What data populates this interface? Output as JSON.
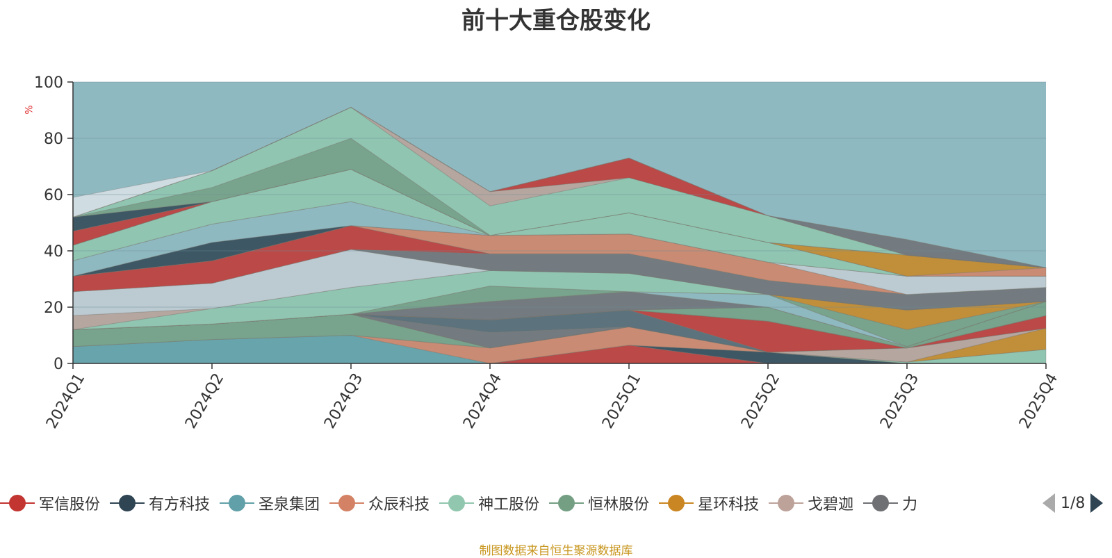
{
  "title": "前十大重仓股变化",
  "yunit": "%",
  "source": "制图数据来自恒生聚源数据库",
  "pager": {
    "text": "1/8"
  },
  "legend": [
    {
      "name": "军信股份",
      "color": "#c23531"
    },
    {
      "name": "有方科技",
      "color": "#2f4554"
    },
    {
      "name": "圣泉集团",
      "color": "#61a0a8"
    },
    {
      "name": "众辰科技",
      "color": "#d48265"
    },
    {
      "name": "神工股份",
      "color": "#91c7ae"
    },
    {
      "name": "恒林股份",
      "color": "#749f83"
    },
    {
      "name": "星环科技",
      "color": "#ca8622"
    },
    {
      "name": "戈碧迦",
      "color": "#bda29a"
    },
    {
      "name": "力",
      "color": "#6e7074"
    }
  ],
  "chart_data": {
    "type": "area",
    "stacked": true,
    "title": "前十大重仓股变化",
    "ylabel": "%",
    "ylim": [
      0,
      100
    ],
    "yticks": [
      0,
      20,
      40,
      60,
      80,
      100
    ],
    "categories": [
      "2024Q1",
      "2024Q2",
      "2024Q3",
      "2024Q4",
      "2025Q1",
      "2025Q2",
      "2025Q3",
      "2025Q4"
    ],
    "background_band": {
      "value": 100,
      "color": "#8fb9c1"
    },
    "series": [
      {
        "color": "#c23531",
        "values": [
          0,
          0,
          0,
          0,
          6.5,
          0,
          0,
          0
        ]
      },
      {
        "color": "#2f4554",
        "values": [
          0,
          0,
          0,
          0,
          0,
          4,
          0,
          0
        ]
      },
      {
        "color": "#61a0a8",
        "values": [
          6,
          8.5,
          10,
          0,
          0,
          0,
          0,
          0
        ]
      },
      {
        "color": "#d48265",
        "values": [
          0,
          0,
          0,
          5.5,
          6.5,
          0,
          0,
          0
        ]
      },
      {
        "color": "#91c7ae",
        "values": [
          0,
          0,
          0,
          0,
          0,
          0,
          0.5,
          5
        ]
      },
      {
        "color": "#749f83",
        "values": [
          6,
          5.5,
          7.5,
          0,
          0,
          0,
          0,
          0
        ]
      },
      {
        "color": "#ca8622",
        "values": [
          0,
          0,
          0,
          0,
          0,
          0,
          0,
          7.5
        ]
      },
      {
        "color": "#bda29a",
        "values": [
          0,
          0,
          0,
          0,
          0,
          0,
          5,
          0
        ]
      },
      {
        "color": "#6e7074",
        "values": [
          0,
          0,
          0,
          5.5,
          0,
          0,
          0,
          0
        ]
      },
      {
        "color": "#546570",
        "values": [
          0,
          0,
          0,
          4.5,
          6,
          0,
          0,
          0
        ]
      },
      {
        "color": "#c23531",
        "values": [
          0,
          0,
          0,
          0,
          0,
          11,
          0,
          4.5
        ]
      },
      {
        "color": "#2f4554",
        "values": [
          0,
          0,
          0,
          0,
          0,
          0,
          0,
          0
        ]
      },
      {
        "color": "#d48265",
        "values": [
          0,
          0,
          0,
          0,
          0,
          0,
          0,
          0
        ]
      },
      {
        "color": "#91c7ae",
        "values": [
          0,
          0,
          0,
          0,
          0,
          0,
          0,
          0
        ]
      },
      {
        "color": "#749f83",
        "values": [
          0,
          0,
          0,
          0,
          0,
          5,
          0.5,
          5
        ]
      },
      {
        "color": "#c4ccd3",
        "values": [
          0,
          0,
          0,
          0,
          0,
          0,
          0,
          0
        ]
      },
      {
        "color": "#6e7074",
        "values": [
          0,
          0,
          0,
          6.5,
          6.5,
          0,
          0,
          0
        ]
      },
      {
        "color": "#8fb9c1",
        "values": [
          0,
          0,
          0,
          0,
          0,
          4.5,
          0,
          0
        ]
      },
      {
        "color": "#749f83",
        "values": [
          0,
          0,
          0,
          5.5,
          0,
          0,
          6,
          0
        ]
      },
      {
        "color": "#ca8622",
        "values": [
          0,
          0,
          0,
          0,
          0,
          0,
          7,
          0
        ]
      },
      {
        "color": "#91c7ae",
        "values": [
          0,
          5.5,
          9.5,
          5.5,
          6.5,
          0,
          0,
          0
        ]
      },
      {
        "color": "#bda29a",
        "values": [
          5,
          0,
          0,
          0,
          0,
          0,
          0,
          0
        ]
      },
      {
        "color": "#c4ccd3",
        "values": [
          8.5,
          9,
          13.5,
          0,
          0,
          0,
          0,
          0
        ]
      },
      {
        "color": "#6e7074",
        "values": [
          0,
          0,
          0,
          6,
          7,
          5,
          5.5,
          5
        ]
      },
      {
        "color": "#c23531",
        "values": [
          5.5,
          8,
          8.5,
          0,
          0,
          0,
          0,
          0
        ]
      },
      {
        "color": "#d48265",
        "values": [
          0,
          0,
          0,
          6.5,
          7,
          6.5,
          0,
          0
        ]
      },
      {
        "color": "#c4ccd3",
        "values": [
          0,
          0,
          0,
          0,
          0,
          0,
          6.5,
          4
        ]
      },
      {
        "color": "#2f4554",
        "values": [
          0,
          6.5,
          0,
          0,
          0,
          0,
          0,
          0
        ]
      },
      {
        "color": "#8fb9c1",
        "values": [
          5.5,
          6.5,
          8.5,
          0,
          0,
          0,
          0,
          0
        ]
      },
      {
        "color": "#91c7ae",
        "values": [
          0,
          0,
          0,
          0,
          7.5,
          7,
          0,
          0
        ]
      },
      {
        "color": "#91c7ae",
        "values": [
          5.5,
          8,
          11.5,
          0,
          0,
          0,
          0,
          0
        ]
      },
      {
        "color": "#d48265",
        "values": [
          0,
          0,
          0,
          0,
          0,
          0,
          0,
          3
        ]
      },
      {
        "color": "#ca8622",
        "values": [
          0,
          0,
          0,
          0,
          0,
          0,
          7.5,
          0
        ]
      },
      {
        "color": "#c23531",
        "values": [
          5,
          0,
          0,
          0,
          0,
          0,
          0,
          0
        ]
      },
      {
        "color": "#2f4554",
        "values": [
          5,
          0,
          0,
          0,
          0,
          0,
          0,
          0
        ]
      },
      {
        "color": "#749f83",
        "values": [
          0,
          5,
          11,
          0,
          0,
          0,
          0,
          0
        ]
      },
      {
        "color": "#91c7ae",
        "values": [
          0,
          6,
          11,
          10.5,
          12.5,
          9.5,
          0,
          0
        ]
      },
      {
        "color": "#bda29a",
        "values": [
          0,
          0,
          0,
          5,
          0,
          0,
          0,
          0
        ]
      },
      {
        "color": "#c23531",
        "values": [
          0,
          0,
          0,
          0,
          7,
          0,
          0,
          0
        ]
      },
      {
        "color": "#6e7074",
        "values": [
          0,
          0,
          0,
          0,
          0,
          0,
          5.5,
          0
        ]
      },
      {
        "color": "#dbe2e6",
        "values": [
          7,
          0,
          0,
          0,
          0,
          0,
          0,
          0
        ]
      }
    ]
  }
}
